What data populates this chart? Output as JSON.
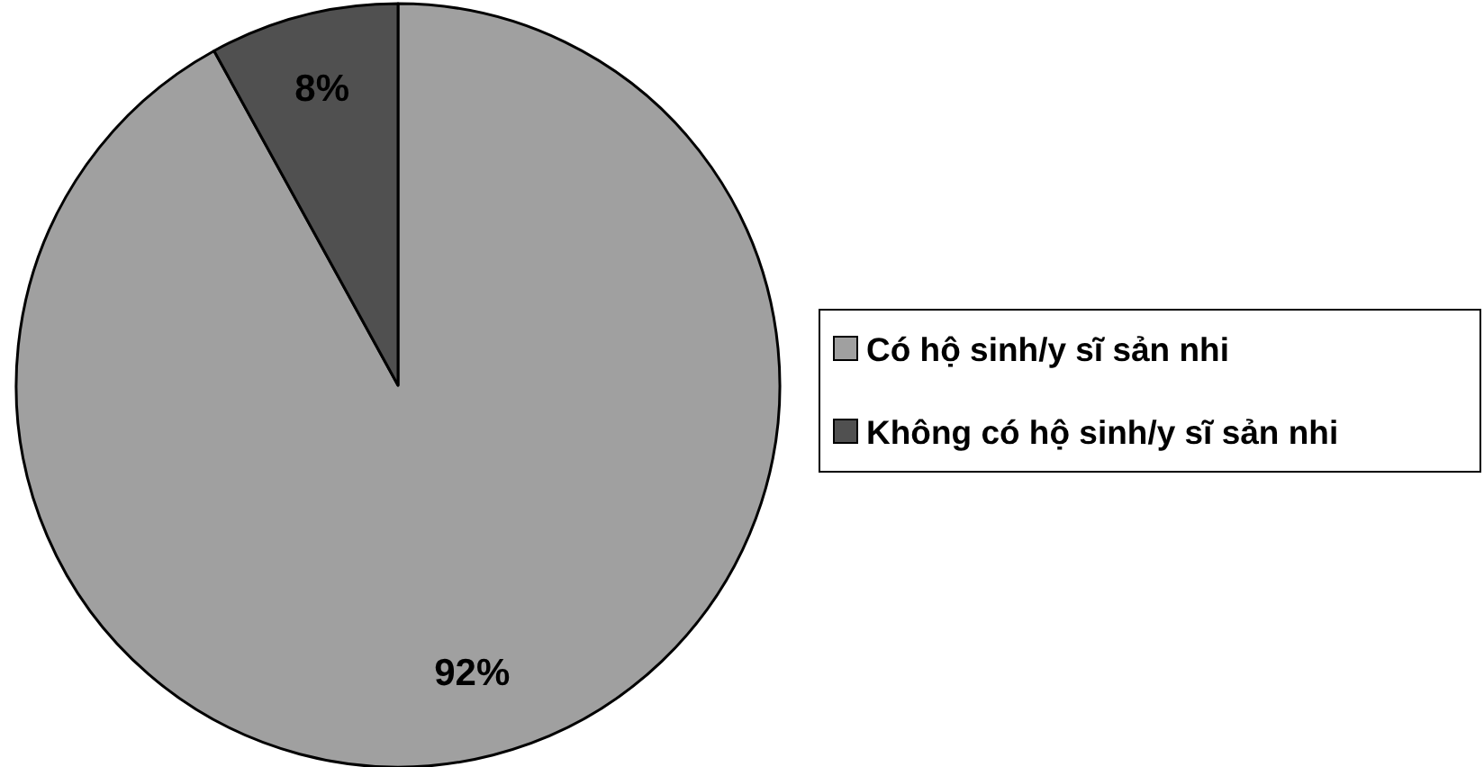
{
  "chart_data": {
    "type": "pie",
    "categories": [
      "Có hộ sinh/y sĩ sản nhi",
      "Không có hộ sinh/y sĩ sản nhi"
    ],
    "values": [
      92,
      8
    ],
    "colors": [
      "#a0a0a0",
      "#505050"
    ],
    "value_labels": [
      "92%",
      "8%"
    ],
    "legend": "right"
  }
}
